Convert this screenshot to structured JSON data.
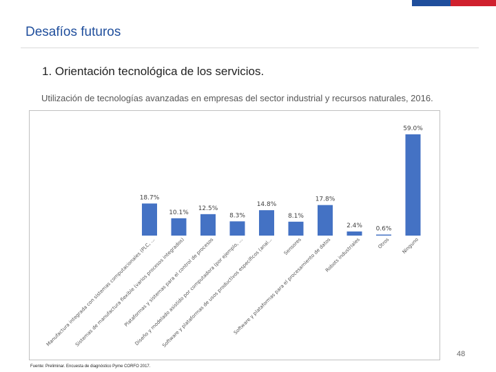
{
  "header": {
    "page_title": "Desafíos futuros",
    "section_title": "1. Orientación tecnológica de los servicios.",
    "flag_colors": {
      "blue": "#1f4e9c",
      "red": "#d0202e"
    }
  },
  "chart_data": {
    "type": "bar",
    "title": "Utilización de tecnologías avanzadas en empresas del sector industrial y recursos naturales, 2016.",
    "xlabel": "",
    "ylabel": "",
    "ylim": [
      0,
      59
    ],
    "grid": false,
    "bar_color": "#4472c4",
    "categories": [
      "Manufactura integrada con sistemas computacionales (PLC, ...",
      "Sistemas de manufactura flexible (varios procesos integrados)",
      "Plataformas y sistemas para el control de procesos",
      "Diseño y modelado asistido por computadora (por ejemplo, ...",
      "Software y plataformas de usos productivos específicos (anal...",
      "Sensores",
      "Software y plataformas para el procesamiento de datos",
      "Robots industriales",
      "Otros",
      "Ninguno"
    ],
    "values": [
      18.7,
      10.1,
      12.5,
      8.3,
      14.8,
      8.1,
      17.8,
      2.4,
      0.6,
      59.0
    ],
    "value_labels": [
      "18.7%",
      "10.1%",
      "12.5%",
      "8.3%",
      "14.8%",
      "8.1%",
      "17.8%",
      "2.4%",
      "0.6%",
      "59.0%"
    ],
    "category_labels": [
      "Manufactura integrada con sistemas computacionales (PLC, ...",
      "Sistemas de manufactura flexible (varios procesos integrados)",
      "Plataformas y sistemas para el control de procesos",
      "Diseño y modelado asistido por computadora (por ejemplo, ...",
      "Software y plataformas de usos productivos específicos (anal...",
      "Sensores",
      "Software y plataformas para el procesamiento de datos",
      "Robots industriales",
      "Otros",
      "Ninguno"
    ]
  },
  "footer": {
    "source": "Fuente: Preliminar. Encuesta de diagnóstico Pyme CORFO 2017.",
    "page_number": "48"
  }
}
